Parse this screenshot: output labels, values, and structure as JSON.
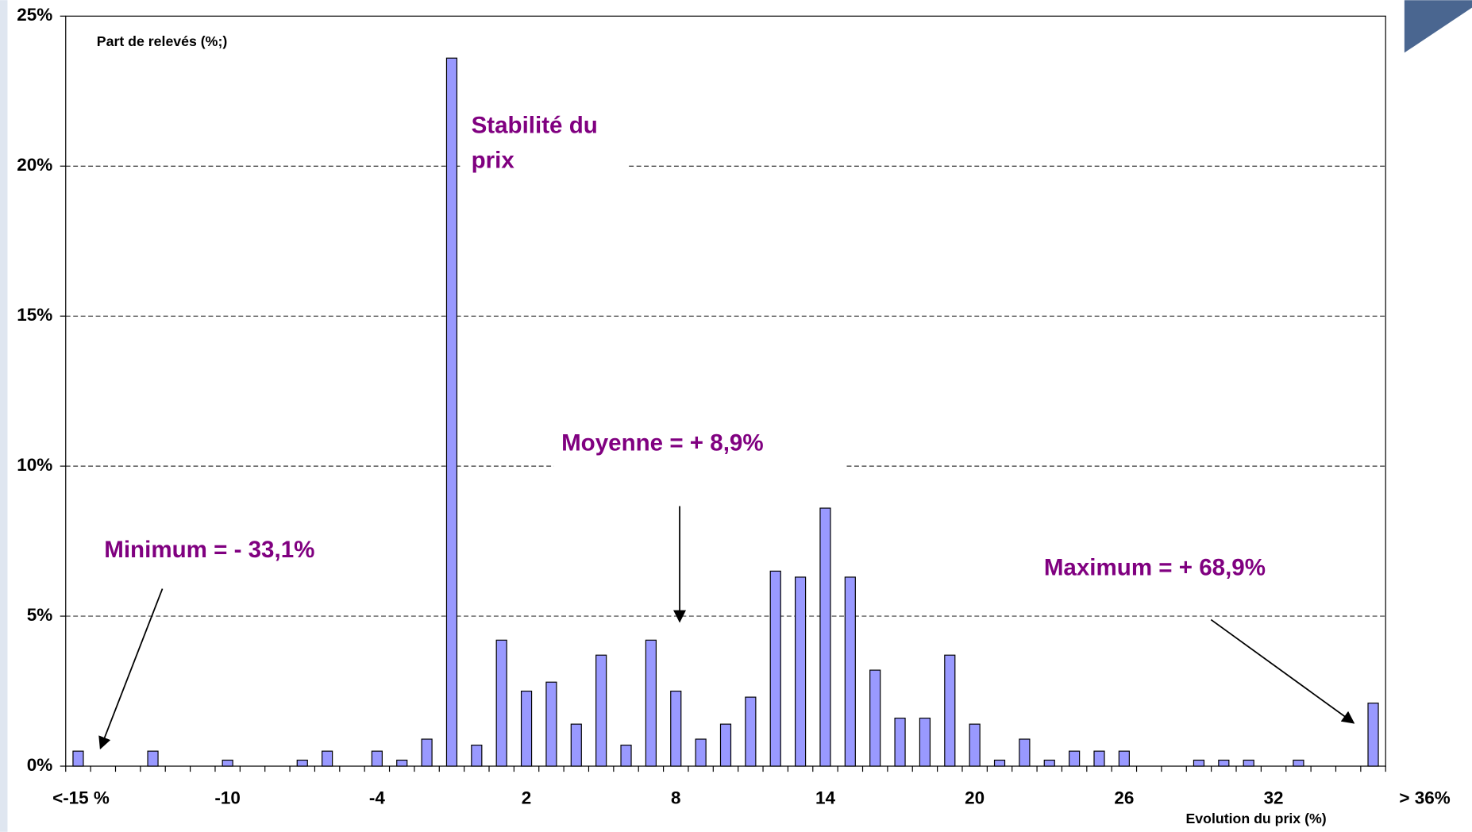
{
  "chart_data": {
    "type": "bar",
    "y_label": "Part de relevés (%;)",
    "x_label": "Evolution du prix (%)",
    "categories": [
      "<-15 %",
      null,
      null,
      null,
      null,
      null,
      "-10",
      null,
      null,
      null,
      null,
      null,
      "-4",
      null,
      null,
      null,
      null,
      null,
      "2",
      null,
      null,
      null,
      null,
      null,
      "8",
      null,
      null,
      null,
      null,
      null,
      "14",
      null,
      null,
      null,
      null,
      null,
      "20",
      null,
      null,
      null,
      null,
      null,
      "26",
      null,
      null,
      null,
      null,
      null,
      "32",
      null,
      null,
      null,
      "> 36%"
    ],
    "values": [
      0.5,
      0,
      0,
      0.5,
      0,
      0,
      0.2,
      0,
      0,
      0.2,
      0.5,
      0,
      0.5,
      0.2,
      0.9,
      23.6,
      0.7,
      4.2,
      2.5,
      2.8,
      1.4,
      3.7,
      0.7,
      4.2,
      2.5,
      0.9,
      1.4,
      2.3,
      6.5,
      6.3,
      8.6,
      6.3,
      3.2,
      1.6,
      1.6,
      3.7,
      1.4,
      0.2,
      0.9,
      0.2,
      0.5,
      0.5,
      0.5,
      0,
      0,
      0.2,
      0.2,
      0.2,
      0,
      0.2,
      0,
      0,
      2.1
    ],
    "color": "#9999ff",
    "ylim": [
      0,
      25
    ],
    "yticks": [
      {
        "value": 0,
        "label": "0%"
      },
      {
        "value": 5,
        "label": "5%"
      },
      {
        "value": 10,
        "label": "10%"
      },
      {
        "value": 15,
        "label": "15%"
      },
      {
        "value": 20,
        "label": "20%"
      },
      {
        "value": 25,
        "label": "25%"
      }
    ],
    "grid": true,
    "annotations": [
      "Stabilité du",
      "prix",
      "Moyenne = + 8,9%",
      "Minimum = - 33,1%",
      "Maximum = + 68,9%"
    ]
  }
}
